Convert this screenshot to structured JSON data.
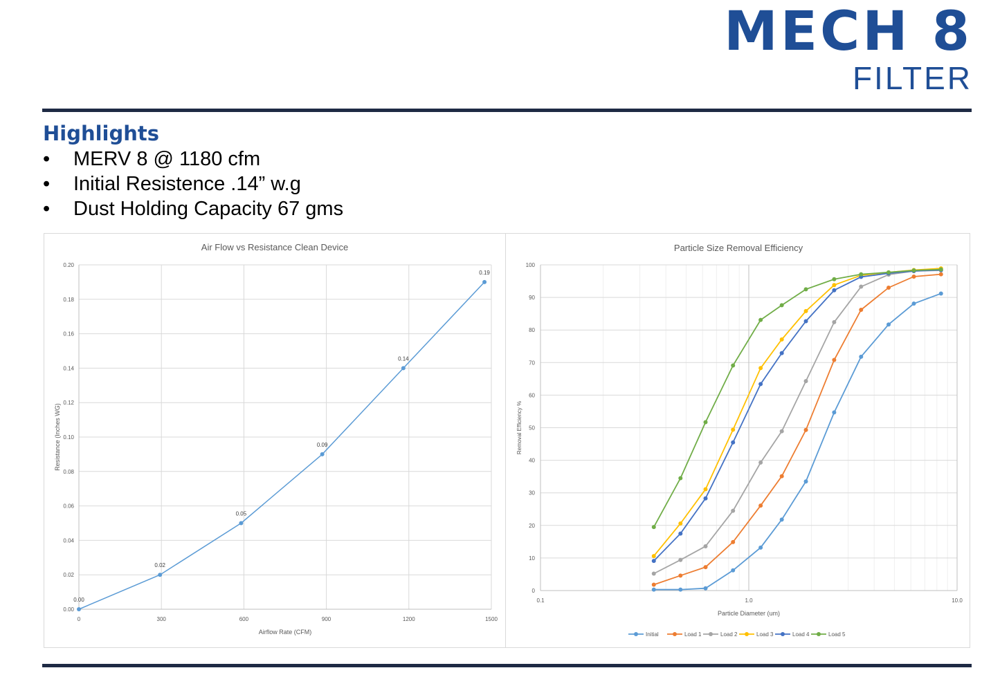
{
  "header": {
    "title": "MECH 8",
    "subtitle": "FILTER"
  },
  "highlights": {
    "heading": "Highlights",
    "bullet": "•",
    "items": [
      "MERV 8 @ 1180 cfm",
      "Initial Resistence .14” w.g",
      "Dust Holding Capacity 67 gms"
    ]
  },
  "chart_data": [
    {
      "type": "line",
      "title": "Air Flow vs Resistance Clean Device",
      "xlabel": "Airflow Rate (CFM)",
      "ylabel": "Resistance (Inches WG)",
      "xlim": [
        0,
        1500
      ],
      "ylim": [
        0,
        0.2
      ],
      "x_ticks": [
        "0",
        "300",
        "600",
        "900",
        "1200",
        "1500"
      ],
      "y_ticks": [
        "0.00",
        "0.02",
        "0.04",
        "0.06",
        "0.08",
        "0.10",
        "0.12",
        "0.14",
        "0.16",
        "0.18",
        "0.20"
      ],
      "grid": true,
      "color": "#5b9bd5",
      "x": [
        0,
        295,
        590,
        885,
        1180,
        1475
      ],
      "y": [
        0.0,
        0.02,
        0.05,
        0.09,
        0.14,
        0.19
      ],
      "data_labels": [
        "0.00",
        "0.02",
        "0.05",
        "0.09",
        "0.14",
        "0.19"
      ]
    },
    {
      "type": "line",
      "title": "Particle Size Removal Efficiency",
      "xlabel": "Particle Diameter (um)",
      "ylabel": "Removal Efficiency %",
      "x_scale": "log",
      "xlim": [
        0.1,
        10.0
      ],
      "ylim": [
        0,
        100
      ],
      "x_ticks": [
        "0.1",
        "1.0",
        "10.0"
      ],
      "y_ticks": [
        "0",
        "10",
        "20",
        "30",
        "40",
        "50",
        "60",
        "70",
        "80",
        "90",
        "100"
      ],
      "grid": true,
      "legend": "bottom",
      "x": [
        0.35,
        0.47,
        0.62,
        0.84,
        1.14,
        1.44,
        1.88,
        2.57,
        3.46,
        4.69,
        6.2,
        8.37
      ],
      "series": [
        {
          "name": "Initial",
          "color": "#5b9bd5",
          "values": [
            0.3,
            0.3,
            0.7,
            6.2,
            13.2,
            21.8,
            33.5,
            54.7,
            71.8,
            81.7,
            88.1,
            91.2
          ]
        },
        {
          "name": "Load 1",
          "color": "#ed7d31",
          "values": [
            1.8,
            4.6,
            7.2,
            14.9,
            26.1,
            35.1,
            49.3,
            70.8,
            86.2,
            93.0,
            96.4,
            97.1
          ]
        },
        {
          "name": "Load 2",
          "color": "#a5a5a5",
          "values": [
            5.2,
            9.4,
            13.6,
            24.5,
            39.3,
            48.9,
            64.3,
            82.4,
            93.3,
            97.0,
            98.1,
            98.3
          ]
        },
        {
          "name": "Load 3",
          "color": "#ffc000",
          "values": [
            10.6,
            20.6,
            31.1,
            49.4,
            68.3,
            77.1,
            85.8,
            93.8,
            96.8,
            97.7,
            98.4,
            98.9
          ]
        },
        {
          "name": "Load 4",
          "color": "#4472c4",
          "values": [
            9.1,
            17.5,
            28.3,
            45.5,
            63.4,
            72.9,
            82.7,
            92.2,
            96.3,
            97.4,
            98.1,
            98.4
          ]
        },
        {
          "name": "Load 5",
          "color": "#70ad47",
          "values": [
            19.5,
            34.5,
            51.7,
            69.1,
            83.1,
            87.6,
            92.5,
            95.6,
            97.1,
            97.7,
            98.3,
            98.6
          ]
        }
      ]
    }
  ]
}
